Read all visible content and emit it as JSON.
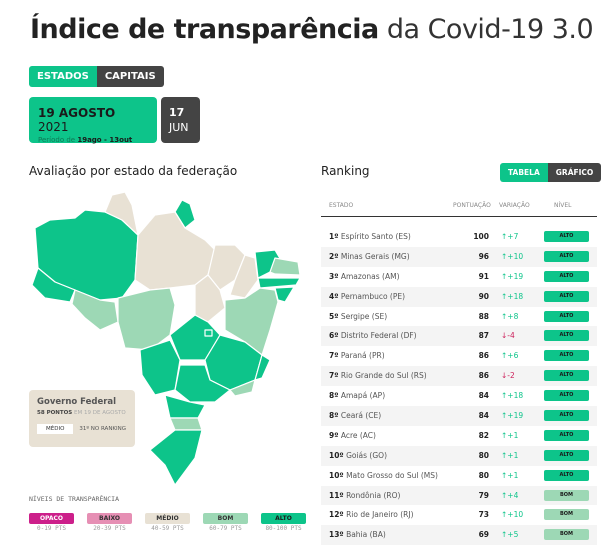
{
  "title": {
    "bold": "Índice de transparência",
    "light": "da Covid-19 3.0"
  },
  "tabs": {
    "estados": "ESTADOS",
    "capitais": "CAPITAIS"
  },
  "date": {
    "day_month": "19 AGOSTO",
    "year": "2021",
    "period_prefix": "Período de",
    "period": "19ago - 13out"
  },
  "prev_date": {
    "day": "17",
    "month": "JUN"
  },
  "map_title": "Avaliação por estado da federação",
  "federal": {
    "title": "Governo Federal",
    "points": "58 PONTOS",
    "when": "EM 19 DE AGOSTO",
    "level": "MÉDIO",
    "rank": "31º NO RANKING"
  },
  "legend": {
    "title": "NÍVEIS DE TRANSPARÊNCIA",
    "items": [
      {
        "label": "OPACO",
        "range": "0-19 PTS",
        "color": "#cc1f8a",
        "text": "#fff"
      },
      {
        "label": "BAIXO",
        "range": "20-39 PTS",
        "color": "#e68fb4",
        "text": "#333"
      },
      {
        "label": "MÉDIO",
        "range": "40-59 PTS",
        "color": "#e8e1d4",
        "text": "#333"
      },
      {
        "label": "BOM",
        "range": "60-79 PTS",
        "color": "#9dd8b5",
        "text": "#333"
      },
      {
        "label": "ALTO",
        "range": "80-100 PTS",
        "color": "#0dc48a",
        "text": "#1a1a1a"
      }
    ]
  },
  "ranking": {
    "title": "Ranking",
    "toggle": {
      "table": "TABELA",
      "chart": "GRÁFICO"
    },
    "headers": {
      "state": "ESTADO",
      "score": "PONTUAÇÃO",
      "var": "VARIAÇÃO",
      "level": "NÍVEL"
    },
    "rows": [
      {
        "pos": "1º",
        "state": "Espírito Santo (ES)",
        "score": "100",
        "var": "↑+7",
        "up": true,
        "level": "ALTO"
      },
      {
        "pos": "2º",
        "state": "Minas Gerais (MG)",
        "score": "96",
        "var": "↑+10",
        "up": true,
        "level": "ALTO"
      },
      {
        "pos": "3º",
        "state": "Amazonas (AM)",
        "score": "91",
        "var": "↑+19",
        "up": true,
        "level": "ALTO"
      },
      {
        "pos": "4º",
        "state": "Pernambuco (PE)",
        "score": "90",
        "var": "↑+18",
        "up": true,
        "level": "ALTO"
      },
      {
        "pos": "5º",
        "state": "Sergipe (SE)",
        "score": "88",
        "var": "↑+8",
        "up": true,
        "level": "ALTO"
      },
      {
        "pos": "6º",
        "state": "Distrito Federal (DF)",
        "score": "87",
        "var": "↓-4",
        "up": false,
        "level": "ALTO"
      },
      {
        "pos": "7º",
        "state": "Paraná (PR)",
        "score": "86",
        "var": "↑+6",
        "up": true,
        "level": "ALTO"
      },
      {
        "pos": "7º",
        "state": "Rio Grande do Sul (RS)",
        "score": "86",
        "var": "↓-2",
        "up": false,
        "level": "ALTO"
      },
      {
        "pos": "8º",
        "state": "Amapá (AP)",
        "score": "84",
        "var": "↑+18",
        "up": true,
        "level": "ALTO"
      },
      {
        "pos": "8º",
        "state": "Ceará (CE)",
        "score": "84",
        "var": "↑+19",
        "up": true,
        "level": "ALTO"
      },
      {
        "pos": "9º",
        "state": "Acre (AC)",
        "score": "82",
        "var": "↑+1",
        "up": true,
        "level": "ALTO"
      },
      {
        "pos": "10º",
        "state": "Goiás (GO)",
        "score": "80",
        "var": "↑+1",
        "up": true,
        "level": "ALTO"
      },
      {
        "pos": "10º",
        "state": "Mato Grosso do Sul (MS)",
        "score": "80",
        "var": "↑+1",
        "up": true,
        "level": "ALTO"
      },
      {
        "pos": "11º",
        "state": "Rondônia (RO)",
        "score": "79",
        "var": "↑+4",
        "up": true,
        "level": "BOM"
      },
      {
        "pos": "12º",
        "state": "Rio de Janeiro (RJ)",
        "score": "73",
        "var": "↑+10",
        "up": true,
        "level": "BOM"
      },
      {
        "pos": "13º",
        "state": "Bahia (BA)",
        "score": "69",
        "var": "↑+5",
        "up": true,
        "level": "BOM"
      }
    ]
  },
  "colors": {
    "green": "#0dc48a",
    "dark": "#444444",
    "medio": "#e8e1d4",
    "bom": "#9dd8b5",
    "up": "#0dc48a",
    "down": "#cc1f5a"
  }
}
